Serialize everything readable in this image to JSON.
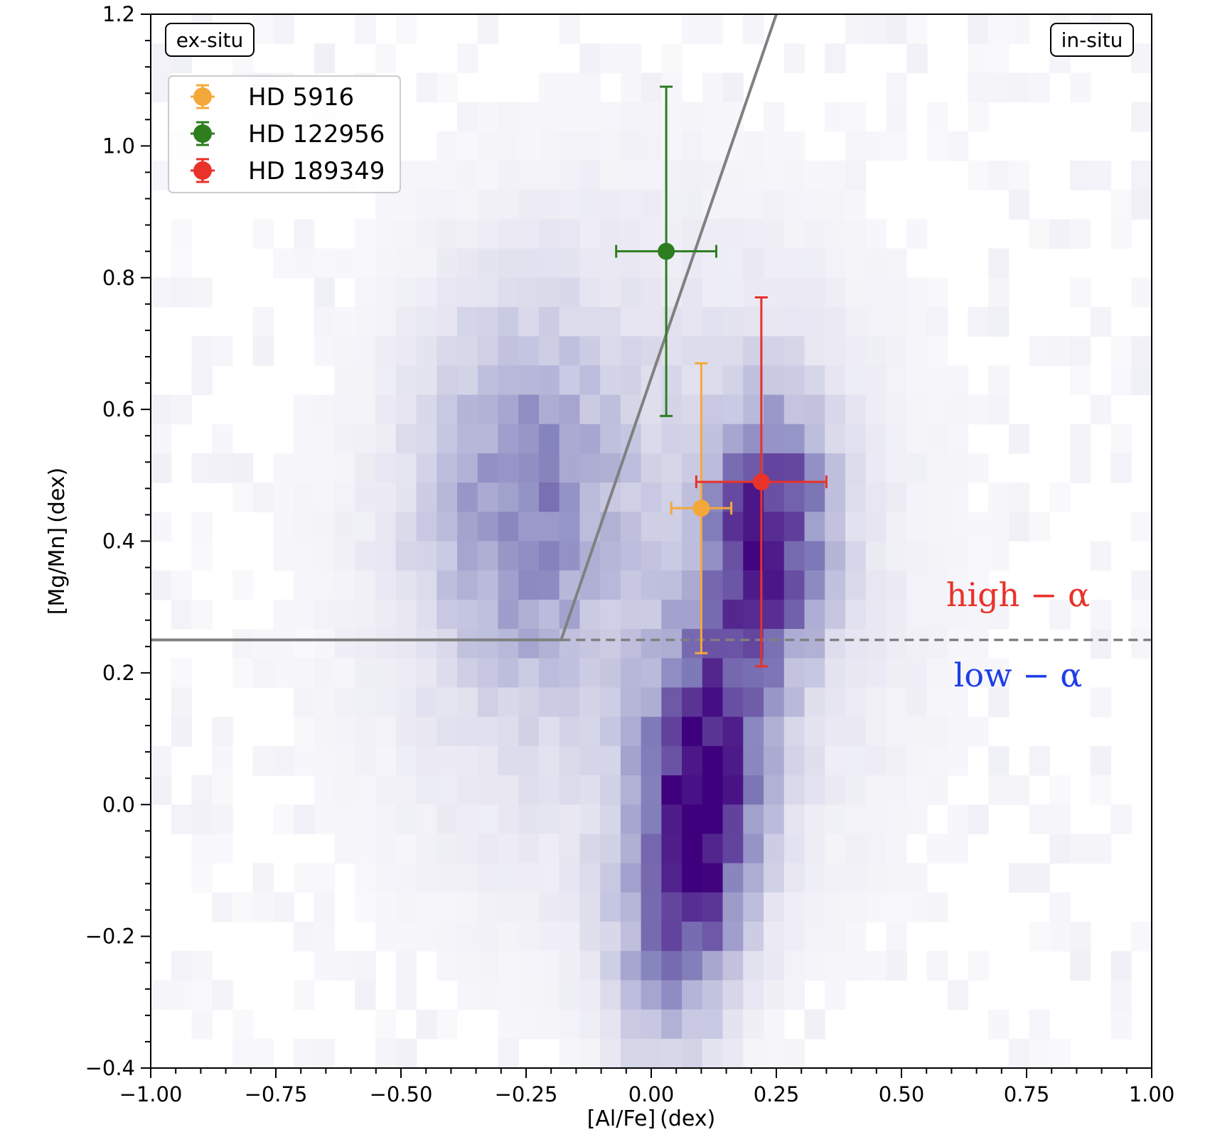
{
  "chart_data": {
    "type": "scatter",
    "title": "",
    "xlabel": "[Al/Fe] (dex)",
    "ylabel": "[Mg/Mn] (dex)",
    "xlim": [
      -1.0,
      1.0
    ],
    "ylim": [
      -0.4,
      1.2
    ],
    "xticks": [
      -1.0,
      -0.75,
      -0.5,
      -0.25,
      0.0,
      0.25,
      0.5,
      0.75,
      1.0
    ],
    "xtick_labels": [
      "−1.00",
      "−0.75",
      "−0.50",
      "−0.25",
      "0.00",
      "0.25",
      "0.50",
      "0.75",
      "1.00"
    ],
    "yticks": [
      -0.4,
      -0.2,
      0.0,
      0.2,
      0.4,
      0.6,
      0.8,
      1.0,
      1.2
    ],
    "ytick_labels": [
      "−0.4",
      "−0.2",
      "0.0",
      "0.2",
      "0.4",
      "0.6",
      "0.8",
      "1.0",
      "1.2"
    ],
    "grid": false,
    "legend_position": "top-left",
    "background_density": {
      "type": "heatmap",
      "colormap": "Purples",
      "components": [
        {
          "cx": 0.09,
          "cy": -0.02,
          "sx": 0.09,
          "sy": 0.2,
          "rho": 0.35,
          "weight": 1.0
        },
        {
          "cx": 0.24,
          "cy": 0.42,
          "sx": 0.08,
          "sy": 0.13,
          "rho": 0.0,
          "weight": 0.72
        },
        {
          "cx": -0.26,
          "cy": 0.46,
          "sx": 0.13,
          "sy": 0.18,
          "rho": 0.0,
          "weight": 0.4
        },
        {
          "cx": -0.02,
          "cy": 0.35,
          "sx": 0.4,
          "sy": 0.42,
          "rho": 0.0,
          "weight": 0.2
        }
      ]
    },
    "boundary_line": {
      "color": "#808080",
      "solid": [
        [
          -1.0,
          0.25
        ],
        [
          -0.18,
          0.25
        ],
        [
          0.25,
          1.2
        ]
      ],
      "dashed": [
        [
          -0.18,
          0.25
        ],
        [
          1.0,
          0.25
        ]
      ]
    },
    "series": [
      {
        "name": "HD 5916",
        "color": "#f5a83a",
        "x": 0.1,
        "y": 0.45,
        "xerr": 0.06,
        "yerr": 0.22
      },
      {
        "name": "HD 122956",
        "color": "#2e7d1f",
        "x": 0.03,
        "y": 0.84,
        "xerr": 0.1,
        "yerr": 0.25
      },
      {
        "name": "HD 189349",
        "color": "#e8322a",
        "x": 0.22,
        "y": 0.49,
        "xerr": 0.13,
        "yerr": 0.28
      }
    ],
    "annotations": [
      {
        "text": "ex-situ",
        "position": "top-left"
      },
      {
        "text": "in-situ",
        "position": "top-right"
      },
      {
        "text": "high − α",
        "color": "#e8322a",
        "position": "right, above dashed line"
      },
      {
        "text": "low − α",
        "color": "#1f3de8",
        "position": "right, below dashed line"
      }
    ]
  }
}
